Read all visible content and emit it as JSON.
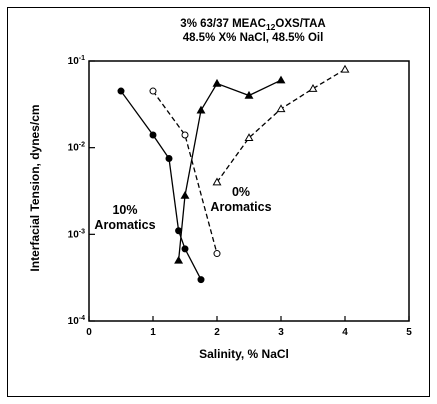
{
  "chart_data": {
    "type": "line",
    "title_lines": [
      "3% 63/37 MEAC12OXS/TAA",
      "48.5% X% NaCl, 48.5% Oil"
    ],
    "title_line1_parts": {
      "pre": "3% 63/37 MEAC",
      "sub": "12",
      "post": "OXS/TAA"
    },
    "xlabel": "Salinity, % NaCl",
    "ylabel": "Interfacial Tension, dynes/cm",
    "xlim": [
      0,
      5
    ],
    "ylim": [
      0.0001,
      0.1
    ],
    "yscale": "log",
    "x_ticks": [
      "0",
      "1",
      "2",
      "3",
      "4",
      "5"
    ],
    "y_tick_exponents": [
      "-4",
      "-3",
      "-2",
      "-1"
    ],
    "y_tick_base": "10",
    "series": [
      {
        "name": "10% Aromatics",
        "line_style": "solid",
        "marker_filled": true,
        "segments": [
          {
            "marker": "circle",
            "x": [
              0.5,
              1.0,
              1.25,
              1.4,
              1.5,
              1.75
            ],
            "y": [
              0.045,
              0.014,
              0.0075,
              0.0011,
              0.00068,
              0.0003
            ]
          },
          {
            "marker": "triangle",
            "x": [
              1.4,
              1.5,
              1.75,
              2.0,
              2.5,
              3.0
            ],
            "y": [
              0.0005,
              0.0028,
              0.027,
              0.055,
              0.04,
              0.06
            ]
          }
        ]
      },
      {
        "name": "0% Aromatics",
        "line_style": "dashed",
        "marker_filled": false,
        "segments": [
          {
            "marker": "circle",
            "x": [
              1.0,
              1.5,
              2.0
            ],
            "y": [
              0.045,
              0.014,
              0.0006
            ]
          },
          {
            "marker": "triangle",
            "x": [
              2.0,
              2.5,
              3.0,
              3.5,
              4.0
            ],
            "y": [
              0.004,
              0.013,
              0.028,
              0.048,
              0.08
            ]
          }
        ]
      }
    ],
    "annotations": [
      {
        "lines": [
          "10%",
          "Aromatics"
        ],
        "for_series": "10% Aromatics"
      },
      {
        "lines": [
          "0%",
          "Aromatics"
        ],
        "for_series": "0% Aromatics"
      }
    ]
  }
}
